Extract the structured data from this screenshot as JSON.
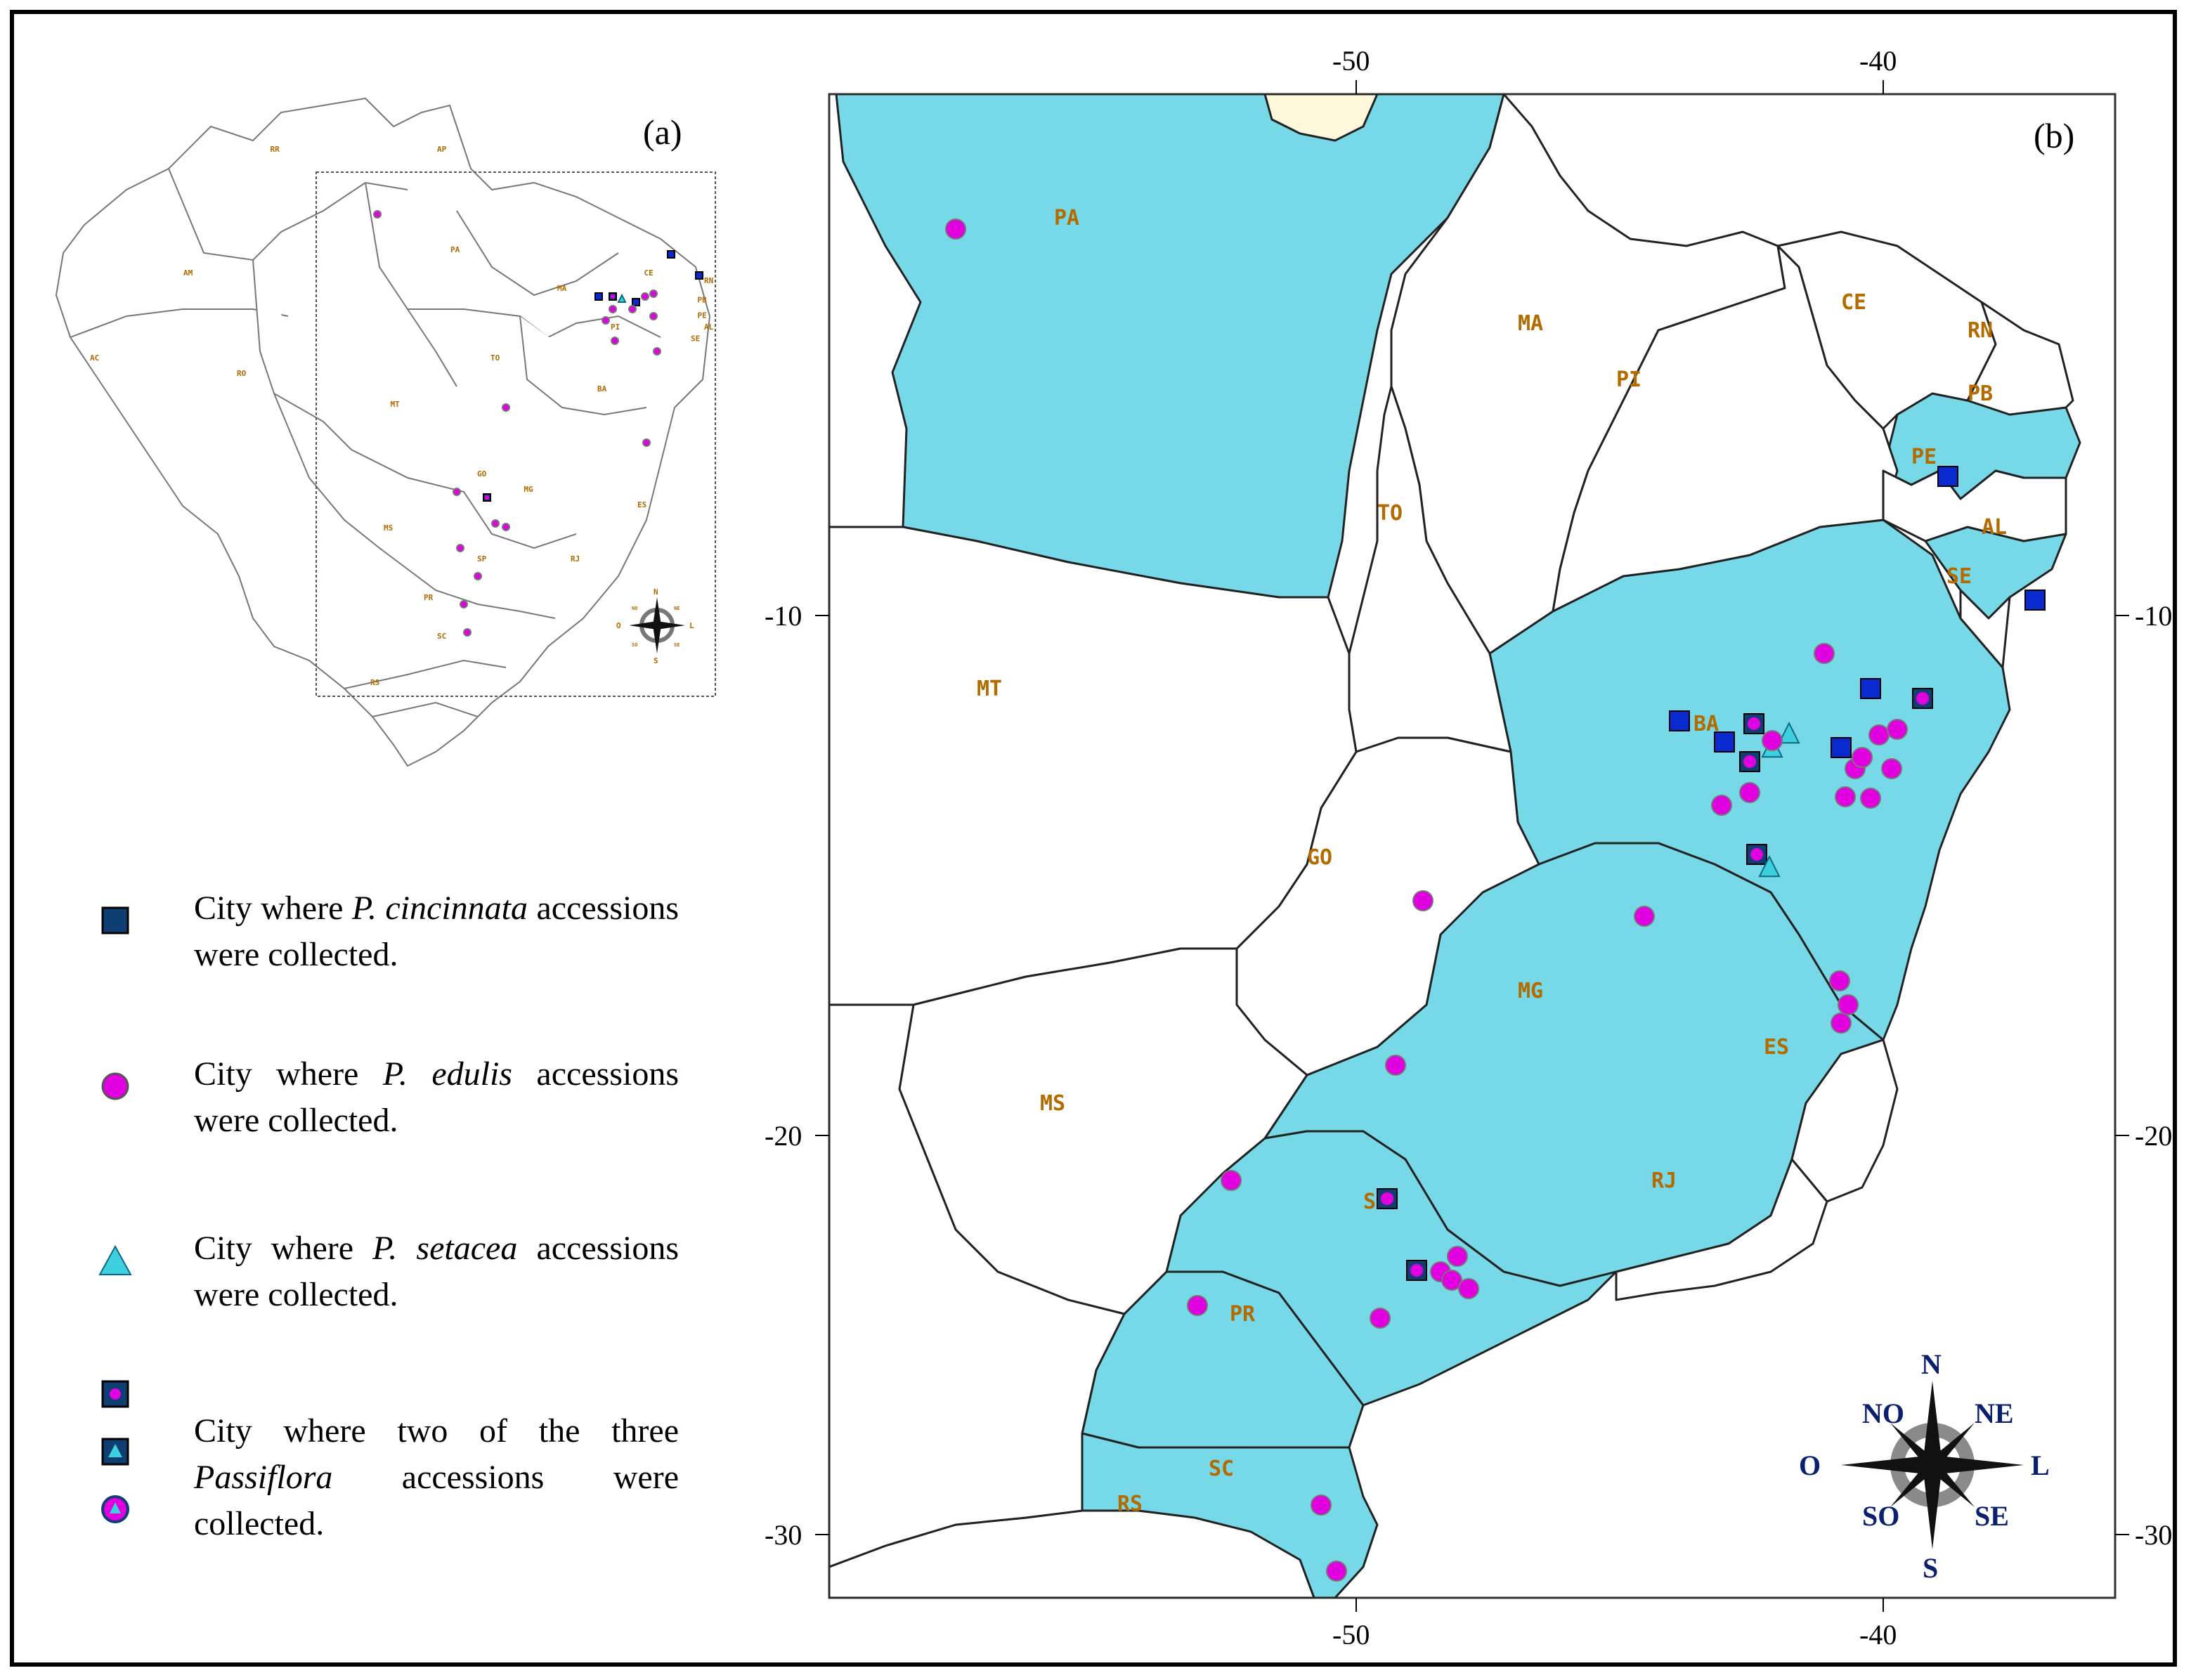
{
  "panel_a": {
    "label": "(a)",
    "state_labels": [
      "AM",
      "RR",
      "AP",
      "PA",
      "AC",
      "RO",
      "MT",
      "MA",
      "PI",
      "CE",
      "RN",
      "PB",
      "PE",
      "AL",
      "SE",
      "TO",
      "BA",
      "GO",
      "MG",
      "ES",
      "MS",
      "SP",
      "RJ",
      "PR",
      "SC",
      "RS"
    ],
    "compass_labels": [
      "N",
      "S",
      "O",
      "L",
      "NO",
      "NE",
      "SO",
      "SE"
    ]
  },
  "panel_b": {
    "label": "(b)",
    "top_ticks": [
      "-50",
      "-40"
    ],
    "bottom_ticks": [
      "-50",
      "-40"
    ],
    "left_ticks": [
      "-10",
      "-20",
      "-30"
    ],
    "right_ticks": [
      "-10",
      "-20",
      "-30"
    ],
    "state_labels": [
      "PA",
      "MA",
      "PI",
      "CE",
      "RN",
      "PB",
      "PE",
      "AL",
      "SE",
      "TO",
      "BA",
      "MT",
      "GO",
      "MG",
      "ES",
      "MS",
      "SP",
      "RJ",
      "PR",
      "SC",
      "RS"
    ],
    "compass_labels": [
      "N",
      "NO",
      "NE",
      "O",
      "L",
      "SO",
      "SE",
      "S"
    ]
  },
  "legend": {
    "cincinnata": {
      "pre": "City where",
      "species": "P. cincinnata",
      "post": "accessions were collected."
    },
    "edulis": {
      "pre": "City where",
      "species": "P. edulis",
      "post": "accessions were collected."
    },
    "setacea": {
      "pre": "City where",
      "species": "P. setacea",
      "post": "accessions were collected."
    },
    "two_of_three": {
      "pre": "City where two of the three",
      "species": "Passiflora",
      "post": "accessions were collected."
    }
  },
  "colors": {
    "collected_state_fill": "#77d8e8",
    "cincinnata": "#0a2ad0",
    "edulis": "#e000e0",
    "setacea": "#3fd0e0",
    "state_label": "#b36b00"
  }
}
